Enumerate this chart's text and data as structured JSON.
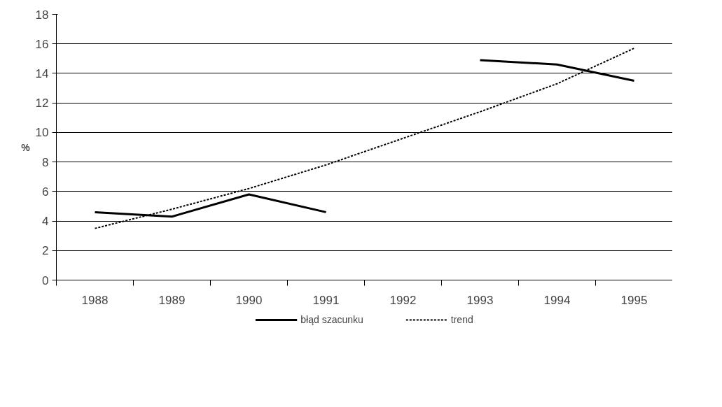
{
  "chart_data": {
    "type": "line",
    "ylabel": "%",
    "categories": [
      "1988",
      "1989",
      "1990",
      "1991",
      "1992",
      "1993",
      "1994",
      "1995"
    ],
    "series": [
      {
        "name": "błąd szacunku",
        "color": "#000000",
        "line_style": "solid",
        "values": [
          4.6,
          4.3,
          5.8,
          4.6,
          null,
          14.9,
          14.6,
          13.5
        ]
      },
      {
        "name": "trend",
        "color": "#000000",
        "line_style": "dotted",
        "values": [
          3.5,
          4.8,
          6.2,
          7.8,
          9.6,
          11.4,
          13.3,
          15.7
        ]
      }
    ],
    "ylim": [
      0,
      18
    ],
    "yticks": [
      0,
      2,
      4,
      6,
      8,
      10,
      12,
      14,
      16,
      18
    ],
    "grid": "y",
    "legend": "bottom",
    "marker": "none"
  }
}
